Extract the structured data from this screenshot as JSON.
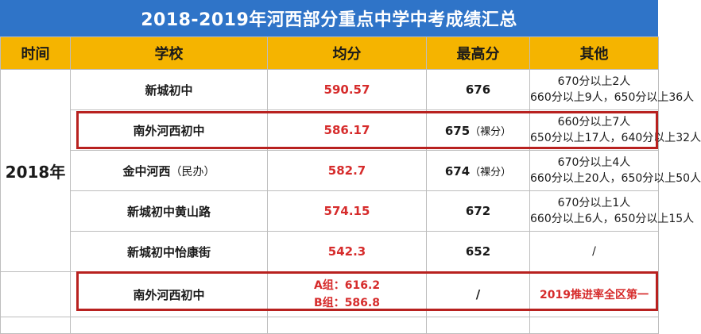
{
  "title": "2018-2019年河西部分重点中学中考成绩汇总",
  "headers": {
    "time": "时间",
    "school": "学校",
    "avg": "均分",
    "max": "最高分",
    "other": "其他"
  },
  "year_2018": "2018年",
  "rows": [
    {
      "school": "新城初中",
      "school_note": "",
      "avg": "590.57",
      "max": "676",
      "max_note": "",
      "other_line1": "670分以上2人",
      "other_line2": "660分以上9人，650分以上36人"
    },
    {
      "school": "南外河西初中",
      "school_note": "",
      "avg": "586.17",
      "max": "675",
      "max_note": "（裸分）",
      "other_line1": "660分以上7人",
      "other_line2": "650分以上17人，640分以上32人"
    },
    {
      "school": "金中河西",
      "school_note": "（民办）",
      "avg": "582.7",
      "max": "674",
      "max_note": "（裸分）",
      "other_line1": "670分以上4人",
      "other_line2": "660分以上20人，650分以上50人"
    },
    {
      "school": "新城初中黄山路",
      "school_note": "",
      "avg": "574.15",
      "max": "672",
      "max_note": "",
      "other_line1": "670分以上1人",
      "other_line2": "660分以上6人，650分以上15人"
    },
    {
      "school": "新城初中怡康街",
      "school_note": "",
      "avg": "542.3",
      "max": "652",
      "max_note": "",
      "other_line1": "/",
      "other_line2": ""
    }
  ],
  "row_2019": {
    "school": "南外河西初中",
    "avg_a": "A组：616.2",
    "avg_b": "B组：586.8",
    "max": "/",
    "other": "2019推进率全区第一"
  },
  "colors": {
    "title_bg": "#2f74c8",
    "header_bg": "#f5b400",
    "accent_red": "#d62b2b",
    "highlight_border": "#b8211f"
  }
}
